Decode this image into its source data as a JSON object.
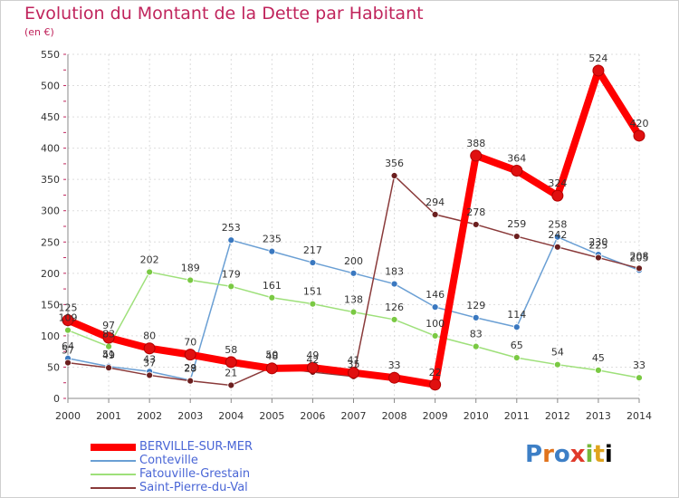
{
  "header": {
    "title": "Evolution du Montant de la Dette par Habitant",
    "subtitle": "(en €)"
  },
  "logo": {
    "text": "Proxiti"
  },
  "chart_data": {
    "type": "line",
    "title": "Evolution du Montant de la Dette par Habitant",
    "subtitle": "(en €)",
    "xlabel": "",
    "ylabel": "",
    "x": [
      2000,
      2001,
      2002,
      2003,
      2004,
      2005,
      2006,
      2007,
      2008,
      2009,
      2010,
      2011,
      2012,
      2013,
      2014
    ],
    "ylim": [
      0,
      550
    ],
    "yticks": [
      0,
      50,
      100,
      150,
      200,
      250,
      300,
      350,
      400,
      450,
      500,
      550
    ],
    "grid": true,
    "legend": "bottom-left",
    "series": [
      {
        "name": "BERVILLE-SUR-MER",
        "color": "#ff0000",
        "marker": "#d81a1a",
        "values": [
          125,
          97,
          80,
          70,
          58,
          48,
          49,
          41,
          33,
          22,
          388,
          364,
          324,
          524,
          420
        ]
      },
      {
        "name": "Conteville",
        "color": "#6a9fd4",
        "marker": "#3a78c0",
        "values": [
          64,
          51,
          43,
          29,
          253,
          235,
          217,
          200,
          183,
          146,
          129,
          114,
          258,
          230,
          205
        ]
      },
      {
        "name": "Fatouville-Grestain",
        "color": "#9ee07a",
        "marker": "#7ac943",
        "values": [
          109,
          83,
          202,
          189,
          179,
          161,
          151,
          138,
          126,
          100,
          83,
          65,
          54,
          45,
          33
        ]
      },
      {
        "name": "Saint-Pierre-du-Val",
        "color": "#8a3a3a",
        "marker": "#6b1f1f",
        "values": [
          57,
          49,
          37,
          28,
          21,
          50,
          42,
          35,
          356,
          294,
          278,
          259,
          242,
          225,
          208
        ]
      }
    ],
    "point_labels": [
      [
        "125",
        "97",
        "80",
        "70",
        "58",
        "48",
        "49",
        "41",
        "33",
        "22",
        "388",
        "364",
        "324",
        "524",
        "420"
      ],
      [
        "64",
        "51",
        "43",
        "29",
        "253",
        "235",
        "217",
        "200",
        "183",
        "146",
        "129",
        "114",
        "258",
        "230",
        "205"
      ],
      [
        "109",
        "83",
        "202",
        "189",
        "179",
        "161",
        "151",
        "138",
        "126",
        "100",
        "83",
        "65",
        "54",
        "45",
        "33"
      ],
      [
        "57",
        "49",
        "37",
        "28",
        "21",
        "50",
        "42",
        "35",
        "356",
        "294",
        "278",
        "259",
        "242",
        "225",
        "208"
      ]
    ]
  }
}
